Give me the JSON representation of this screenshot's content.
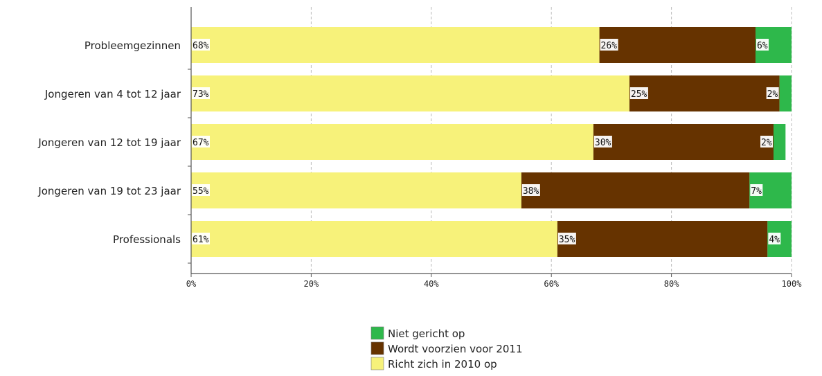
{
  "chart_data": {
    "type": "bar",
    "orientation": "horizontal",
    "stacked": true,
    "categories": [
      "Probleemgezinnen",
      "Jongeren van 4 tot 12 jaar",
      "Jongeren van 12 tot 19 jaar",
      "Jongeren van 19 tot 23 jaar",
      "Professionals"
    ],
    "series": [
      {
        "name": "Richt zich in 2010 op",
        "color": "#f7f27a",
        "values": [
          68,
          73,
          67,
          55,
          61
        ],
        "labels": [
          "68%",
          "73%",
          "67%",
          "55%",
          "61%"
        ]
      },
      {
        "name": "Wordt voorzien voor 2011",
        "color": "#663300",
        "values": [
          26,
          25,
          30,
          38,
          35
        ],
        "labels": [
          "26%",
          "25%",
          "30%",
          "38%",
          "35%"
        ]
      },
      {
        "name": "Niet gericht op",
        "color": "#2eb84b",
        "values": [
          6,
          2,
          2,
          7,
          4
        ],
        "labels": [
          "6%",
          "2%",
          "2%",
          "7%",
          "4%"
        ]
      }
    ],
    "xlim": [
      0,
      100
    ],
    "xticks": [
      "0%",
      "20%",
      "40%",
      "60%",
      "80%",
      "100%"
    ],
    "grid": true,
    "legend": {
      "placement": "bottom-center",
      "order": [
        "Niet gericht op",
        "Wordt voorzien voor 2011",
        "Richt zich in 2010 op"
      ]
    }
  }
}
